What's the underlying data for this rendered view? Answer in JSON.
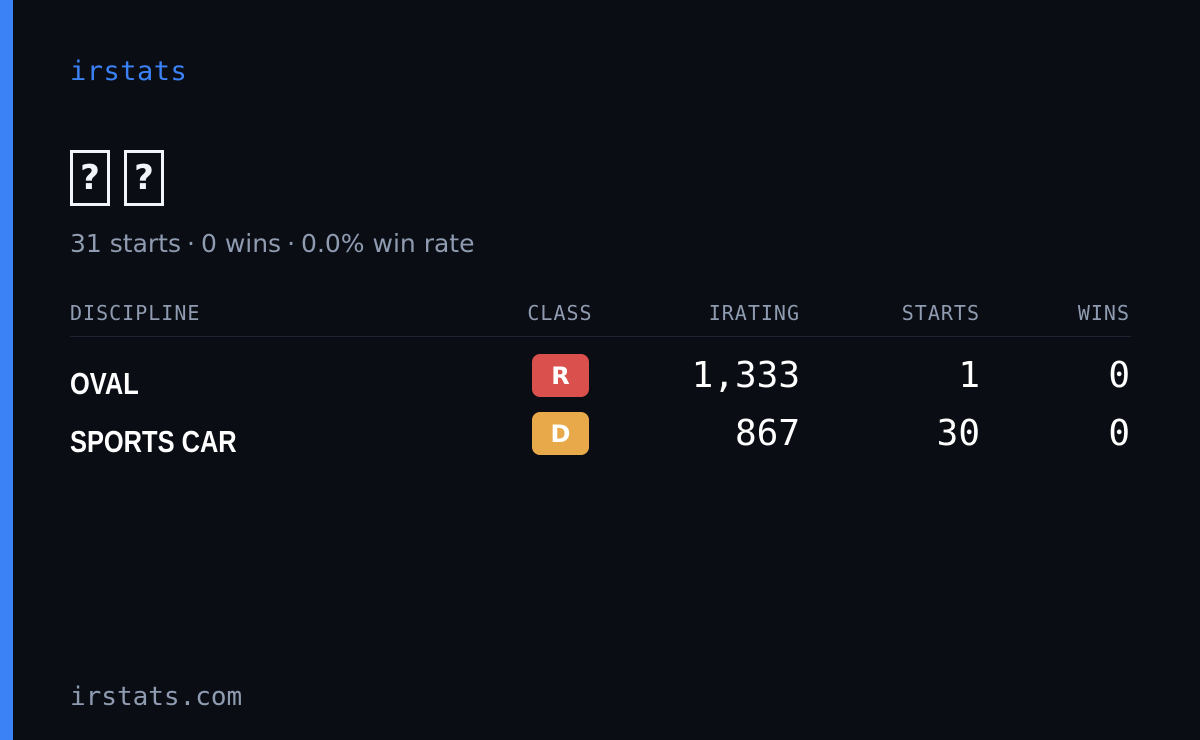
{
  "brand": "irstats",
  "profile": {
    "name_glyphs": [
      "?",
      "?"
    ],
    "summary": {
      "starts": "31 starts",
      "wins": "0 wins",
      "win_rate": "0.0% win rate",
      "separator": "·"
    }
  },
  "table": {
    "headers": {
      "discipline": "DISCIPLINE",
      "class": "CLASS",
      "irating": "IRATING",
      "starts": "STARTS",
      "wins": "WINS"
    },
    "rows": [
      {
        "discipline": "OVAL",
        "class": "R",
        "class_color": "#d9504c",
        "irating": "1,333",
        "starts": "1",
        "wins": "0"
      },
      {
        "discipline": "SPORTS CAR",
        "class": "D",
        "class_color": "#e8a94a",
        "irating": "867",
        "starts": "30",
        "wins": "0"
      }
    ]
  },
  "footer": "irstats.com",
  "colors": {
    "background": "#0a0d14",
    "accent": "#3b82f6",
    "muted_text": "#8f9bb0",
    "primary_text": "#ffffff"
  }
}
